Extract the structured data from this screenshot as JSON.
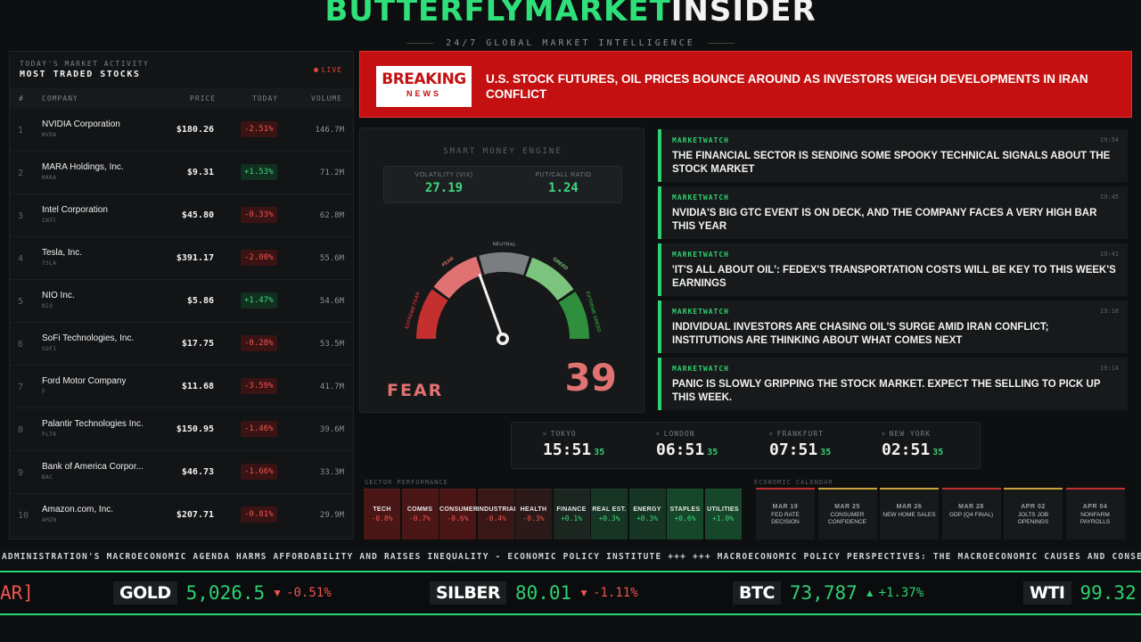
{
  "header": {
    "brand_green": "BUTTERFLYMARKET",
    "brand_white": "INSIDER",
    "tagline": "24/7 GLOBAL MARKET INTELLIGENCE"
  },
  "stocks": {
    "subtitle": "TODAY'S MARKET ACTIVITY",
    "title": "MOST TRADED STOCKS",
    "live": "LIVE",
    "columns": {
      "rank": "#",
      "company": "COMPANY",
      "price": "PRICE",
      "today": "TODAY",
      "volume": "VOLUME"
    },
    "rows": [
      {
        "rank": "1",
        "name": "NVIDIA Corporation",
        "ticker": "NVDA",
        "price": "$180.26",
        "change": "-2.51%",
        "dir": "neg",
        "volume": "146.7M"
      },
      {
        "rank": "2",
        "name": "MARA Holdings, Inc.",
        "ticker": "MARA",
        "price": "$9.31",
        "change": "+1.53%",
        "dir": "pos",
        "volume": "71.2M"
      },
      {
        "rank": "3",
        "name": "Intel Corporation",
        "ticker": "INTC",
        "price": "$45.80",
        "change": "-0.33%",
        "dir": "neg",
        "volume": "62.8M"
      },
      {
        "rank": "4",
        "name": "Tesla, Inc.",
        "ticker": "TSLA",
        "price": "$391.17",
        "change": "-2.00%",
        "dir": "neg",
        "volume": "55.6M"
      },
      {
        "rank": "5",
        "name": "NIO Inc.",
        "ticker": "NIO",
        "price": "$5.86",
        "change": "+1.47%",
        "dir": "pos",
        "volume": "54.6M"
      },
      {
        "rank": "6",
        "name": "SoFi Technologies, Inc.",
        "ticker": "SOFI",
        "price": "$17.75",
        "change": "-0.28%",
        "dir": "neg",
        "volume": "53.5M"
      },
      {
        "rank": "7",
        "name": "Ford Motor Company",
        "ticker": "F",
        "price": "$11.68",
        "change": "-3.59%",
        "dir": "neg",
        "volume": "41.7M"
      },
      {
        "rank": "8",
        "name": "Palantir Technologies Inc.",
        "ticker": "PLTR",
        "price": "$150.95",
        "change": "-1.46%",
        "dir": "neg",
        "volume": "39.6M"
      },
      {
        "rank": "9",
        "name": "Bank of America Corpor...",
        "ticker": "BAC",
        "price": "$46.73",
        "change": "-1.66%",
        "dir": "neg",
        "volume": "33.3M"
      },
      {
        "rank": "10",
        "name": "Amazon.com, Inc.",
        "ticker": "AMZN",
        "price": "$207.71",
        "change": "-0.81%",
        "dir": "neg",
        "volume": "29.9M"
      }
    ]
  },
  "breaking": {
    "badge_top": "BREAKING",
    "badge_bottom": "NEWS",
    "headline": "U.S. STOCK FUTURES, OIL PRICES BOUNCE AROUND AS INVESTORS WEIGH DEVELOPMENTS IN IRAN CONFLICT"
  },
  "gauge": {
    "title": "SMART MONEY ENGINE",
    "vix_label": "VOLATILITY (VIX)",
    "vix_value": "27.19",
    "pcr_label": "PUT/CALL RATIO",
    "pcr_value": "1.24",
    "zones": [
      "EXTREME FEAR",
      "FEAR",
      "NEUTRAL",
      "GREED",
      "EXTREME GREED"
    ],
    "zone_colors": [
      "#c43030",
      "#e07272",
      "#7a7e81",
      "#7cc47e",
      "#2f8f3e"
    ],
    "sentiment": "FEAR",
    "value": "39",
    "level": 39
  },
  "news": [
    {
      "source": "MARKETWATCH",
      "time": "19:54",
      "headline": "THE FINANCIAL SECTOR IS SENDING SOME SPOOKY TECHNICAL SIGNALS ABOUT THE STOCK MARKET"
    },
    {
      "source": "MARKETWATCH",
      "time": "19:45",
      "headline": "NVIDIA'S BIG GTC EVENT IS ON DECK, AND THE COMPANY FACES A VERY HIGH BAR THIS YEAR"
    },
    {
      "source": "MARKETWATCH",
      "time": "19:41",
      "headline": "'IT'S ALL ABOUT OIL': FEDEX'S TRANSPORTATION COSTS WILL BE KEY TO THIS WEEK'S EARNINGS"
    },
    {
      "source": "MARKETWATCH",
      "time": "19:18",
      "headline": "INDIVIDUAL INVESTORS ARE CHASING OIL'S SURGE AMID IRAN CONFLICT; INSTITUTIONS ARE THINKING ABOUT WHAT COMES NEXT"
    },
    {
      "source": "MARKETWATCH",
      "time": "19:14",
      "headline": "PANIC IS SLOWLY GRIPPING THE STOCK MARKET. EXPECT THE SELLING TO PICK UP THIS WEEK."
    }
  ],
  "clocks": [
    {
      "city": "TOKYO",
      "hm": "15:51",
      "ss": "35"
    },
    {
      "city": "LONDON",
      "hm": "06:51",
      "ss": "35"
    },
    {
      "city": "FRANKFURT",
      "hm": "07:51",
      "ss": "35"
    },
    {
      "city": "NEW YORK",
      "hm": "02:51",
      "ss": "35"
    }
  ],
  "sectors": {
    "title": "SECTOR PERFORMANCE",
    "items": [
      {
        "name": "TECH",
        "value": "-0.8%",
        "dir": "neg"
      },
      {
        "name": "COMMS",
        "value": "-0.7%",
        "dir": "neg"
      },
      {
        "name": "CONSUMER",
        "value": "-0.6%",
        "dir": "neg"
      },
      {
        "name": "INDUSTRIAL",
        "value": "-0.4%",
        "dir": "neg"
      },
      {
        "name": "HEALTH",
        "value": "-0.3%",
        "dir": "neg"
      },
      {
        "name": "FINANCE",
        "value": "+0.1%",
        "dir": "pos"
      },
      {
        "name": "REAL EST.",
        "value": "+0.3%",
        "dir": "pos"
      },
      {
        "name": "ENERGY",
        "value": "+0.3%",
        "dir": "pos"
      },
      {
        "name": "STAPLES",
        "value": "+0.6%",
        "dir": "pos"
      },
      {
        "name": "UTILITIES",
        "value": "+1.0%",
        "dir": "pos"
      }
    ],
    "colors": {
      "neg_strong": "#4a1616",
      "neg_mid": "#3a1717",
      "neg_weak": "#2c1a1a",
      "pos_weak": "#1c2620",
      "pos_mid": "#163524",
      "pos_strong": "#16472a"
    }
  },
  "econ": {
    "title": "ECONOMIC CALENDAR",
    "items": [
      {
        "date": "MAR 19",
        "name": "FED RATE DECISION",
        "accent": "#c43030"
      },
      {
        "date": "MAR 25",
        "name": "CONSUMER CONFIDENCE",
        "accent": "#c9a23a"
      },
      {
        "date": "MAR 26",
        "name": "NEW HOME SALES",
        "accent": "#c9a23a"
      },
      {
        "date": "MAR 28",
        "name": "GDP (Q4 FINAL)",
        "accent": "#c43030"
      },
      {
        "date": "APR 02",
        "name": "JOLTS JOB OPENINGS",
        "accent": "#c9a23a"
      },
      {
        "date": "APR 04",
        "name": "NONFARM PAYROLLS",
        "accent": "#c43030"
      }
    ]
  },
  "ticker_news": "ADMINISTRATION'S MACROECONOMIC AGENDA HARMS AFFORDABILITY AND RAISES INEQUALITY - ECONOMIC POLICY INSTITUTE +++ +++ MACROECONOMIC POLICY PERSPECTIVES: THE MACROECONOMIC CAUSES AND CONSEQUENCES OF",
  "ticker_fragment": "AR]",
  "tickers": [
    {
      "symbol": "GOLD",
      "price": "5,026.5",
      "arrow": "▼",
      "change": "-0.51%",
      "dir": "dn"
    },
    {
      "symbol": "SILBER",
      "price": "80.01",
      "arrow": "▼",
      "change": "-1.11%",
      "dir": "dn"
    },
    {
      "symbol": "BTC",
      "price": "73,787",
      "arrow": "▲",
      "change": "+1.37%",
      "dir": "up"
    },
    {
      "symbol": "WTI",
      "price": "99.32",
      "arrow": "",
      "change": "",
      "dir": "up"
    }
  ]
}
